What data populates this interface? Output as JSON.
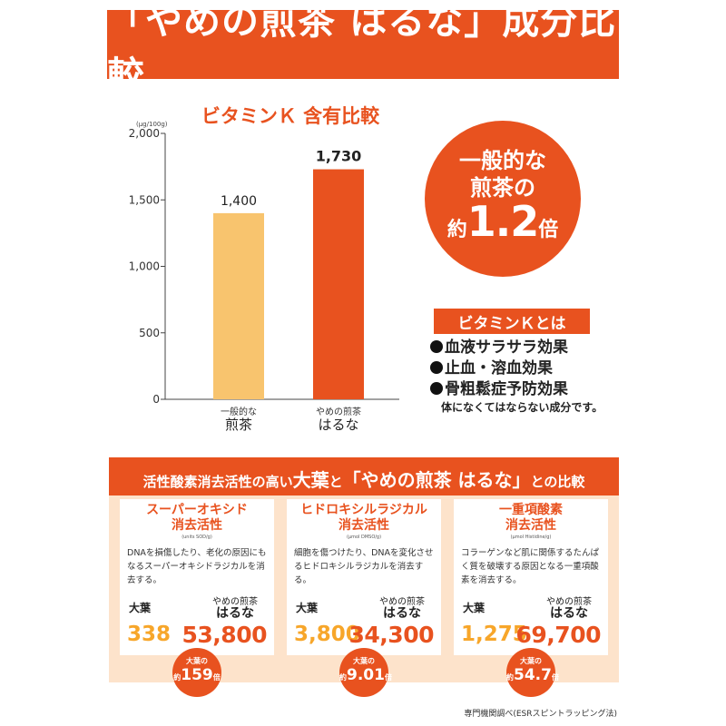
{
  "title": "「やめの煎茶 はるな」成分比較",
  "colors": {
    "accent": "#e8521f",
    "bar_general": "#f8c46e",
    "bar_haruna": "#e8521f",
    "light_orange": "#fde3cb",
    "value_yellow": "#f7a62a"
  },
  "chart_data": {
    "type": "bar",
    "title": "ビタミンＫ 含有比較",
    "unit_label": "(μg/100g)",
    "categories": [
      {
        "top": "一般的な",
        "bottom": "煎茶"
      },
      {
        "top": "やめの煎茶",
        "bottom": "はるな"
      }
    ],
    "values": [
      1400,
      1730
    ],
    "value_labels": [
      "1,400",
      "1,730"
    ],
    "yticks": [
      0,
      500,
      1000,
      1500,
      2000
    ],
    "ytick_labels": [
      "0",
      "500",
      "1,000",
      "1,500",
      "2,000"
    ],
    "ylim": [
      0,
      2000
    ],
    "grid": false
  },
  "circle": {
    "line1": "一般的な",
    "line2": "煎茶の",
    "prefix": "約",
    "number": "1.2",
    "suffix": "倍"
  },
  "vitamin_k": {
    "header": "ビタミンＫとは",
    "items": [
      "血液サラサラ効果",
      "止血・溶血効果",
      "骨粗鬆症予防効果"
    ],
    "note": "体になくてはならない成分です。"
  },
  "comparison": {
    "header_part1": "活性酸素消去活性の高い",
    "header_big1": "大葉",
    "header_part2": "と",
    "header_big2": "「やめの煎茶 はるな」",
    "header_part3": "との比較",
    "label_a": "大葉",
    "label_b_top": "やめの煎茶",
    "label_b_name": "はるな",
    "badge_top": "大葉の",
    "badge_prefix": "約",
    "badge_suffix": "倍",
    "cards": [
      {
        "title1": "スーパーオキシド",
        "title2": "消去活性",
        "unit": "(units SOD/g)",
        "desc": "DNAを損傷したり、老化の原因にもなるスーパーオキシドラジカルを消去する。",
        "value_a": "338",
        "value_b": "53,800",
        "ratio": "159"
      },
      {
        "title1": "ヒドロキシルラジカル",
        "title2": "消去活性",
        "unit": "(μmol DMSO/g)",
        "desc": "細胞を傷つけたり、DNAを変化させるヒドロキシルラジカルを消去する。",
        "value_a": "3,800",
        "value_b": "34,300",
        "ratio": "9.01"
      },
      {
        "title1": "一重項酸素",
        "title2": "消去活性",
        "unit": "(μmol Histidine/g)",
        "desc": "コラーゲンなど肌に関係するたんぱく質を破壊する原因となる一重項酸素を消去する。",
        "value_a": "1,275",
        "value_b": "69,700",
        "ratio": "54.7"
      }
    ]
  },
  "footnote": "専門機関調べ(ESRスピントラッピング法)"
}
